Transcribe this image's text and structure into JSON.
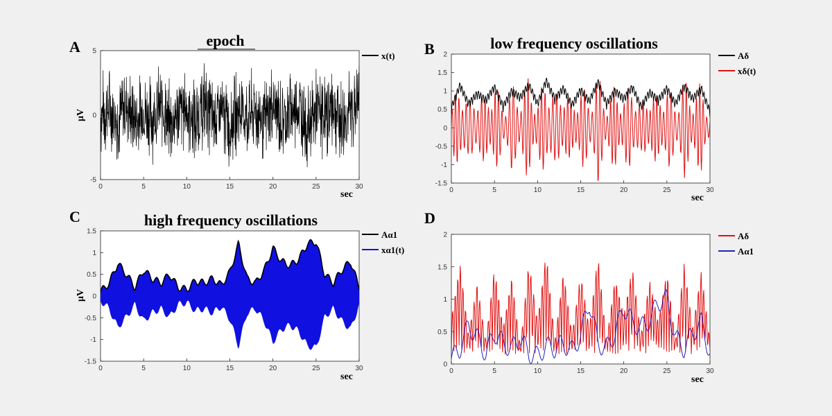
{
  "chart_data": [
    {
      "panel": "A",
      "type": "line",
      "title": "epoch",
      "ylabel": "μV",
      "xlabel": "sec",
      "xlim": [
        0,
        30
      ],
      "ylim": [
        -5,
        5
      ],
      "xticks": [
        0,
        5,
        10,
        15,
        20,
        25,
        30
      ],
      "yticks": [
        -5,
        0,
        5
      ],
      "series": [
        {
          "name": "x(t)",
          "color": "#000000",
          "signal": "noisy-eeg",
          "amplitude": 4.5,
          "values": [
            0.3,
            2.1,
            -1.8,
            3.4,
            -2.6,
            1.2,
            -0.7,
            2.9,
            -3.1,
            0.8,
            1.9,
            -2.4,
            3.8,
            -1.1,
            0.4,
            -3.6,
            2.2,
            -0.9,
            1.5,
            -2.8,
            3.1,
            -1.6,
            0.2,
            2.7,
            -3.9,
            1.1,
            -0.5,
            3.3,
            -2.2,
            0.9,
            4.4
          ]
        }
      ]
    },
    {
      "panel": "B",
      "type": "line",
      "title": "low frequency oscillations",
      "xlabel": "sec",
      "xlim": [
        0,
        30
      ],
      "ylim": [
        -1.5,
        2
      ],
      "xticks": [
        0,
        5,
        10,
        15,
        20,
        25,
        30
      ],
      "yticks": [
        -1.5,
        -1,
        -0.5,
        0,
        0.5,
        1,
        1.5,
        2
      ],
      "series": [
        {
          "name": "Aδ",
          "color": "#000000",
          "signal": "envelope",
          "values": [
            0.55,
            1.42,
            0.7,
            1.1,
            0.85,
            1.35,
            0.6,
            1.2,
            0.95,
            1.45,
            0.7,
            1.6,
            0.9,
            1.3,
            0.65,
            1.25,
            0.8,
            1.55,
            0.7,
            1.2,
            0.9,
            1.35,
            0.6,
            1.15,
            0.85,
            1.3,
            0.7,
            1.4,
            0.9,
            1.3,
            0.4
          ]
        },
        {
          "name": "xδ(t)",
          "color": "#e01010",
          "signal": "oscillation",
          "values": [
            0.3,
            -0.6,
            1.4,
            -1.3,
            0.9,
            -0.8,
            1.2,
            -1.1,
            0.7,
            -0.9,
            1.3,
            -1.2,
            1.6,
            -1.35,
            0.8,
            -1.0,
            1.1,
            -0.7,
            1.4,
            -1.3,
            0.9,
            -1.0,
            1.2,
            -0.8,
            1.0,
            -1.2,
            1.3,
            -0.9,
            1.2,
            -0.8,
            -0.4
          ]
        }
      ]
    },
    {
      "panel": "C",
      "type": "area",
      "title": "high frequency oscillations",
      "ylabel": "μV",
      "xlabel": "sec",
      "xlim": [
        0,
        30
      ],
      "ylim": [
        -1.5,
        1.5
      ],
      "xticks": [
        0,
        5,
        10,
        15,
        20,
        25,
        30
      ],
      "yticks": [
        -1.5,
        -1,
        -0.5,
        0,
        0.5,
        1,
        1.5
      ],
      "series": [
        {
          "name": "Aα1",
          "color": "#000000",
          "signal": "envelope",
          "values": [
            0.1,
            0.3,
            0.75,
            0.5,
            0.2,
            0.6,
            0.4,
            0.3,
            0.5,
            0.2,
            0.15,
            0.35,
            0.3,
            0.4,
            0.25,
            0.55,
            1.2,
            0.4,
            0.3,
            0.6,
            1.1,
            0.8,
            0.7,
            0.85,
            1.2,
            1.25,
            0.5,
            0.3,
            0.6,
            0.8,
            0.2
          ]
        },
        {
          "name": "xα1(t)",
          "color": "#1010e0",
          "signal": "oscillation",
          "values": []
        }
      ]
    },
    {
      "panel": "D",
      "type": "line",
      "xlabel": "sec",
      "xlim": [
        0,
        30
      ],
      "ylim": [
        0,
        2
      ],
      "xticks": [
        0,
        5,
        10,
        15,
        20,
        25,
        30
      ],
      "yticks": [
        0,
        0.5,
        1,
        1.5,
        2
      ],
      "series": [
        {
          "name": "Aδ",
          "color": "#e01010",
          "signal": "envelope",
          "values": [
            0.55,
            1.42,
            0.3,
            1.1,
            0.2,
            1.35,
            0.4,
            1.2,
            0.1,
            1.45,
            0.5,
            1.6,
            0.2,
            1.3,
            0.3,
            1.25,
            0.4,
            1.55,
            0.2,
            1.2,
            0.6,
            1.35,
            0.3,
            1.15,
            0.5,
            1.3,
            0.2,
            1.4,
            0.4,
            1.3,
            0.2
          ]
        },
        {
          "name": "Aα1",
          "color": "#2020c0",
          "signal": "envelope",
          "values": [
            0.1,
            0.3,
            0.75,
            0.5,
            0.2,
            0.6,
            0.4,
            0.3,
            0.5,
            0.2,
            0.15,
            0.35,
            0.3,
            0.4,
            0.25,
            0.55,
            1.2,
            0.4,
            0.3,
            0.6,
            1.1,
            0.8,
            0.7,
            0.85,
            1.2,
            1.25,
            0.5,
            0.3,
            0.6,
            0.8,
            0.2
          ]
        }
      ]
    }
  ]
}
